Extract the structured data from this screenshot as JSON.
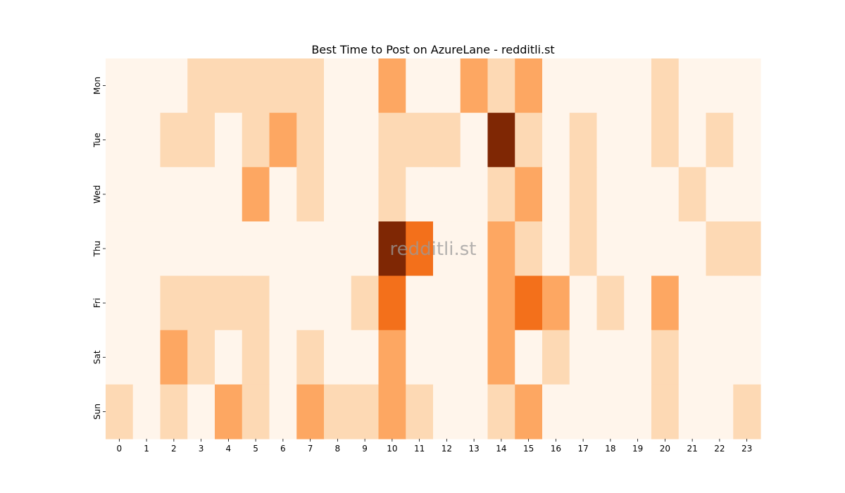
{
  "chart_data": {
    "type": "heatmap",
    "title": "Best Time to Post on AzureLane - redditli.st",
    "watermark": "redditli.st",
    "xlabel": "",
    "ylabel": "",
    "x": [
      "0",
      "1",
      "2",
      "3",
      "4",
      "5",
      "6",
      "7",
      "8",
      "9",
      "10",
      "11",
      "12",
      "13",
      "14",
      "15",
      "16",
      "17",
      "18",
      "19",
      "20",
      "21",
      "22",
      "23"
    ],
    "y": [
      "Mon",
      "Tue",
      "Wed",
      "Thu",
      "Fri",
      "Sat",
      "Sun"
    ],
    "colormap": "Oranges",
    "levels": [
      "#fff5eb",
      "#fdd9b4",
      "#fda762",
      "#f3701b",
      "#7f2704"
    ],
    "values": [
      [
        0,
        0,
        0,
        1,
        1,
        1,
        1,
        1,
        0,
        0,
        2,
        0,
        0,
        2,
        1,
        2,
        0,
        0,
        0,
        0,
        1,
        0,
        0,
        0
      ],
      [
        0,
        0,
        1,
        1,
        0,
        1,
        2,
        1,
        0,
        0,
        1,
        1,
        1,
        0,
        4,
        1,
        0,
        1,
        0,
        0,
        1,
        0,
        1,
        0
      ],
      [
        0,
        0,
        0,
        0,
        0,
        2,
        0,
        1,
        0,
        0,
        1,
        0,
        0,
        0,
        1,
        2,
        0,
        1,
        0,
        0,
        0,
        1,
        0,
        0
      ],
      [
        0,
        0,
        0,
        0,
        0,
        0,
        0,
        0,
        0,
        0,
        4,
        3,
        0,
        0,
        2,
        1,
        0,
        1,
        0,
        0,
        0,
        0,
        1,
        1
      ],
      [
        0,
        0,
        1,
        1,
        1,
        1,
        0,
        0,
        0,
        1,
        3,
        0,
        0,
        0,
        2,
        3,
        2,
        0,
        1,
        0,
        2,
        0,
        0,
        0
      ],
      [
        0,
        0,
        2,
        1,
        0,
        1,
        0,
        1,
        0,
        0,
        2,
        0,
        0,
        0,
        2,
        0,
        1,
        0,
        0,
        0,
        1,
        0,
        0,
        0
      ],
      [
        1,
        0,
        1,
        0,
        2,
        1,
        0,
        2,
        1,
        1,
        2,
        1,
        0,
        0,
        1,
        2,
        0,
        0,
        0,
        0,
        1,
        0,
        0,
        1
      ]
    ]
  }
}
